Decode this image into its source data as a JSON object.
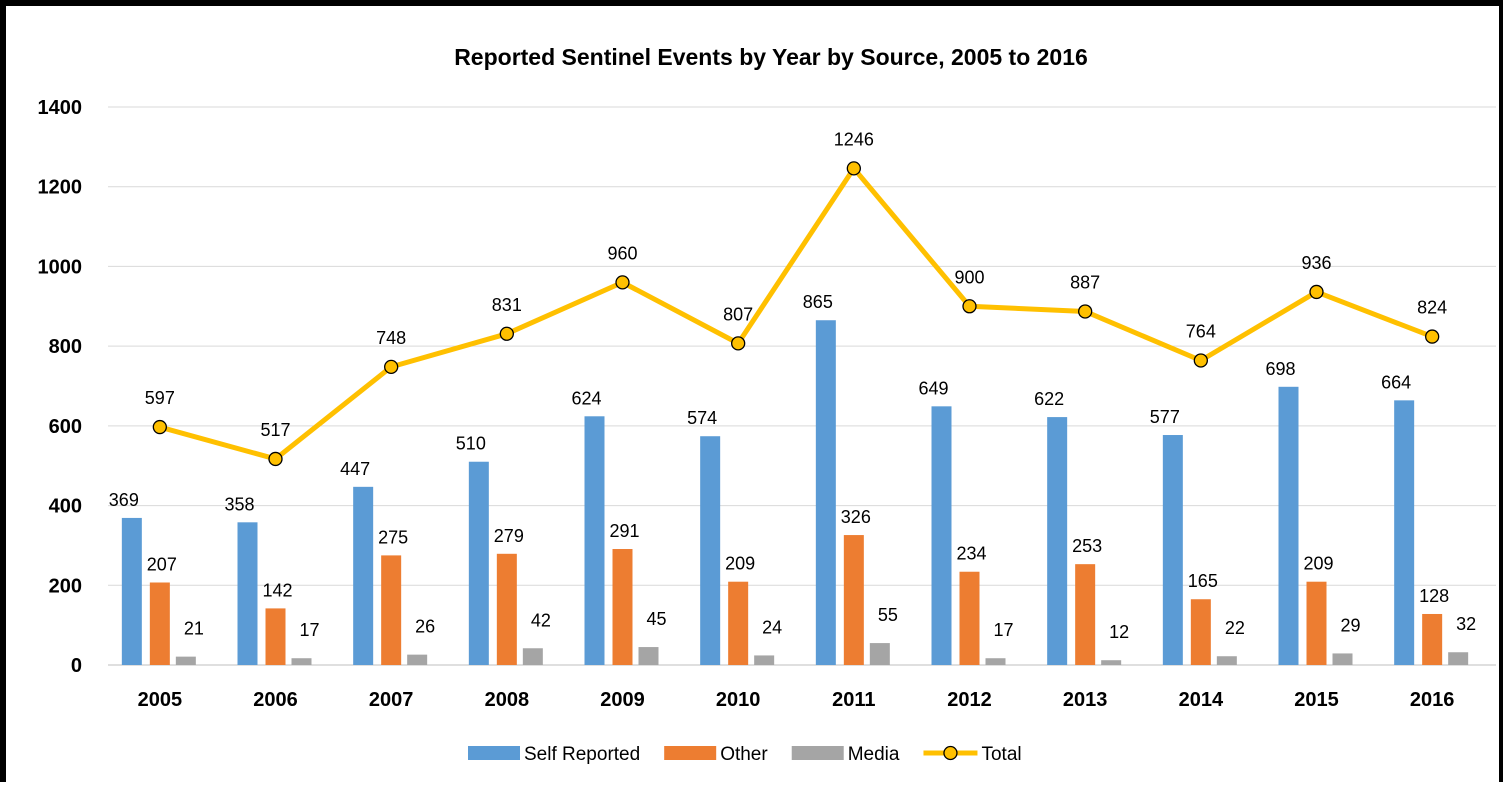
{
  "chart_data": {
    "type": "bar",
    "title": "Reported Sentinel Events by Year by Source, 2005 to 2016",
    "xlabel": "",
    "ylabel": "",
    "ylim": [
      0,
      1400
    ],
    "yticks": [
      0,
      200,
      400,
      600,
      800,
      1000,
      1200,
      1400
    ],
    "grid": true,
    "legend_position": "bottom",
    "categories": [
      "2005",
      "2006",
      "2007",
      "2008",
      "2009",
      "2010",
      "2011",
      "2012",
      "2013",
      "2014",
      "2015",
      "2016"
    ],
    "series": [
      {
        "name": "Self Reported",
        "type": "bar",
        "color": "#5B9BD5",
        "values": [
          369,
          358,
          447,
          510,
          624,
          574,
          865,
          649,
          622,
          577,
          698,
          664
        ]
      },
      {
        "name": "Other",
        "type": "bar",
        "color": "#ED7D31",
        "values": [
          207,
          142,
          275,
          279,
          291,
          209,
          326,
          234,
          253,
          165,
          209,
          128
        ]
      },
      {
        "name": "Media",
        "type": "bar",
        "color": "#A5A5A5",
        "values": [
          21,
          17,
          26,
          42,
          45,
          24,
          55,
          17,
          12,
          22,
          29,
          32
        ]
      },
      {
        "name": "Total",
        "type": "line",
        "color": "#FFC000",
        "values": [
          597,
          517,
          748,
          831,
          960,
          807,
          1246,
          900,
          887,
          764,
          936,
          824
        ]
      }
    ]
  }
}
